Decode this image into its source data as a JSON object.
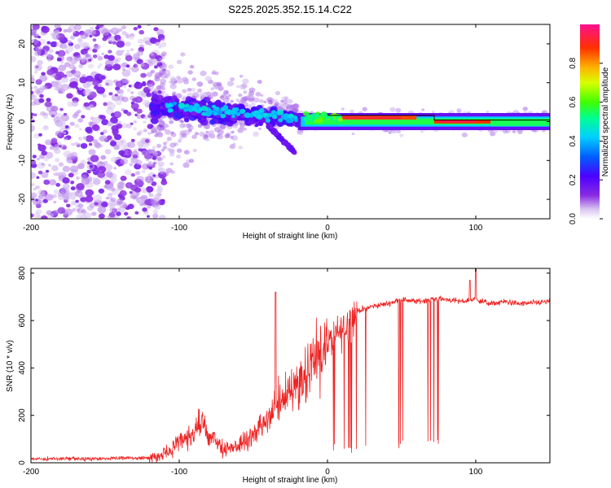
{
  "title": "S225.2025.352.15.14.C22",
  "colors": {
    "background": "#ffffff",
    "axis": "#000000",
    "snr_line": "#ee2222",
    "ridge_black": "#000000"
  },
  "chart_data": [
    {
      "type": "heatmap",
      "name": "spectrogram",
      "xlabel": "Height of straight line (km)",
      "ylabel": "Frequency (Hz)",
      "xlim": [
        -200,
        150
      ],
      "ylim": [
        -25,
        25
      ],
      "xticks": [
        -200,
        -100,
        0,
        100
      ],
      "xtick_labels": [
        "-200",
        "-100",
        "0",
        "100"
      ],
      "yticks": [
        -20,
        -10,
        0,
        10,
        20
      ],
      "ytick_labels": [
        "-20",
        "-10",
        "0",
        "10",
        "20"
      ],
      "colorbar": {
        "label": "Normalized spectral amplitude",
        "range": [
          0,
          1
        ],
        "ticks": [
          0.0,
          0.2,
          0.4,
          0.6,
          0.8
        ],
        "tick_labels": [
          "0.0",
          "0.2",
          "0.4",
          "0.6",
          "0.8"
        ],
        "colormap": "rainbow (white → purple → blue → cyan → green → yellow → orange → red → magenta)"
      },
      "features": [
        {
          "x_range": [
            -200,
            -120
          ],
          "freq_spread": [
            -25,
            25
          ],
          "amplitude": 0.05,
          "description": "diffuse noise"
        },
        {
          "x_range": [
            -120,
            -20
          ],
          "freq_center": "~5 to ~0",
          "amplitude": 0.2,
          "description": "broadening signal"
        },
        {
          "x_range": [
            -20,
            150
          ],
          "freq_center": 0,
          "amplitude": 0.9,
          "description": "narrow carrier line"
        }
      ]
    },
    {
      "type": "line",
      "name": "snr",
      "xlabel": "Height of straight line (km)",
      "ylabel": "SNR (10 * v/v)",
      "xlim": [
        -200,
        150
      ],
      "ylim": [
        0,
        820
      ],
      "xticks": [
        -200,
        -100,
        0,
        100
      ],
      "xtick_labels": [
        "-200",
        "-100",
        "0",
        "100"
      ],
      "yticks": [
        0,
        200,
        400,
        600,
        800
      ],
      "ytick_labels": [
        "0",
        "200",
        "400",
        "600",
        "800"
      ],
      "series": [
        {
          "name": "SNR",
          "x": [
            -200,
            -180,
            -160,
            -140,
            -120,
            -110,
            -100,
            -90,
            -85,
            -80,
            -70,
            -60,
            -50,
            -40,
            -30,
            -20,
            -10,
            0,
            10,
            20,
            30,
            40,
            50,
            60,
            70,
            80,
            90,
            100,
            110,
            120,
            130,
            140,
            150
          ],
          "values": [
            15,
            18,
            15,
            20,
            20,
            35,
            80,
            130,
            170,
            110,
            60,
            70,
            120,
            180,
            280,
            340,
            420,
            500,
            560,
            640,
            660,
            670,
            690,
            680,
            690,
            690,
            680,
            690,
            670,
            680,
            670,
            675,
            680
          ]
        }
      ],
      "dropouts": [
        {
          "x_range": [
            0,
            30
          ],
          "min_value": 40
        },
        {
          "x_range": [
            45,
            75
          ],
          "min_value": 60
        }
      ],
      "spikes": [
        {
          "x": -35,
          "value": 720
        },
        {
          "x": 96,
          "value": 770
        },
        {
          "x": 100,
          "value": 820
        }
      ]
    }
  ]
}
